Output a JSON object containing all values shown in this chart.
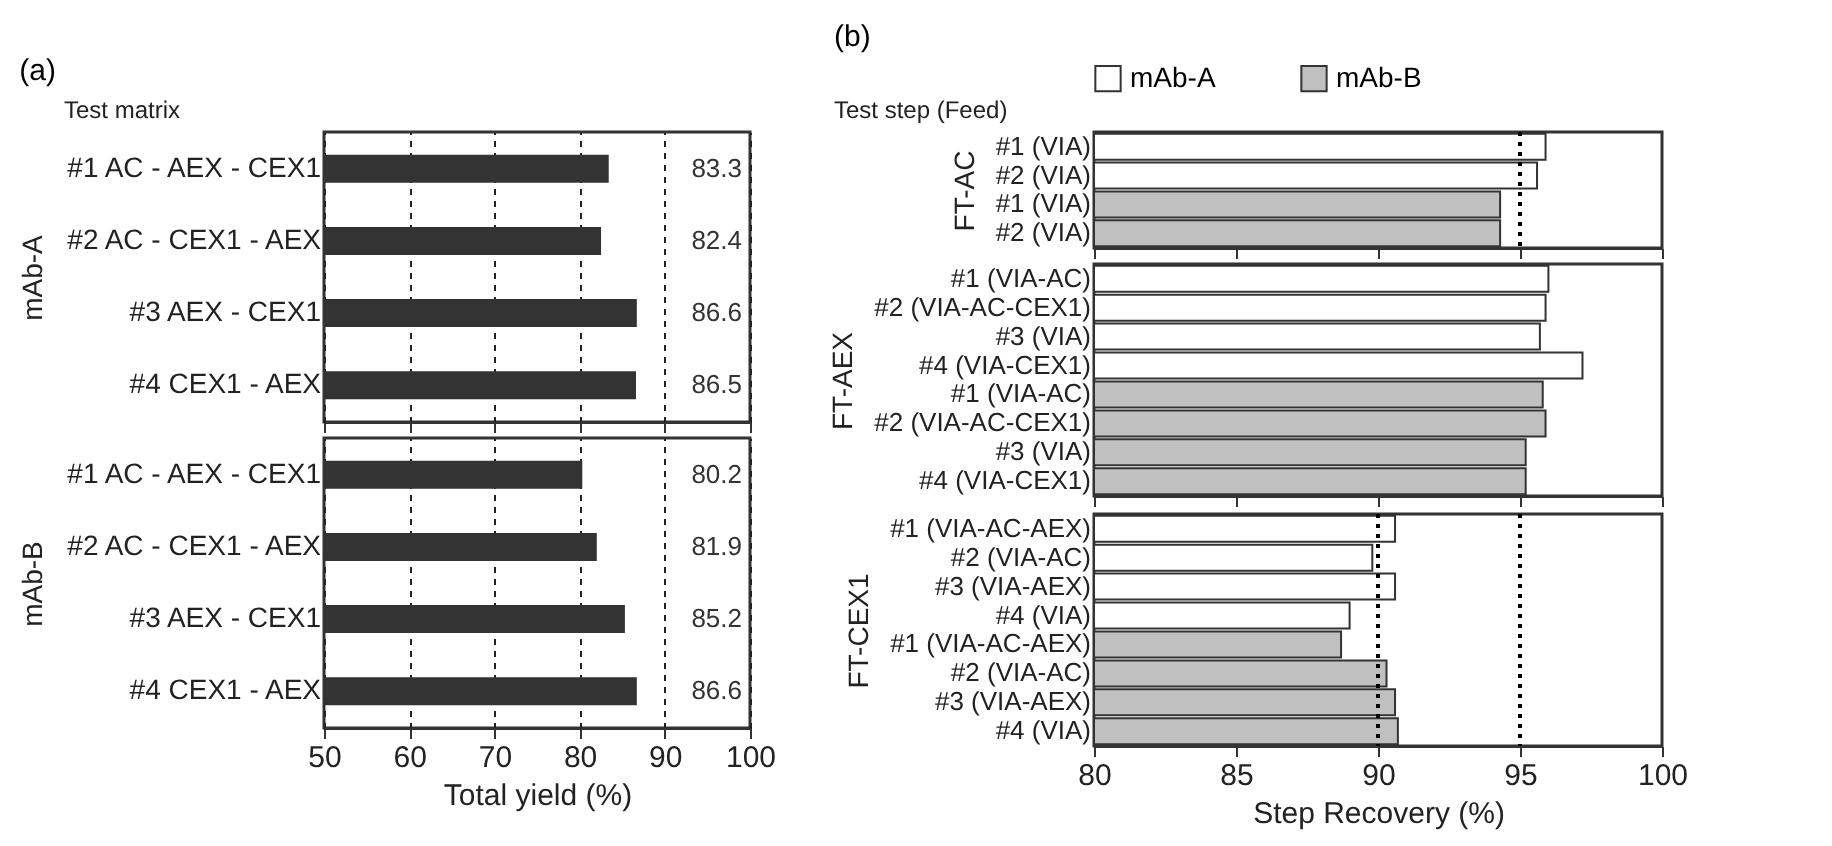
{
  "chart_data": [
    {
      "type": "bar",
      "orientation": "horizontal",
      "title": "(a)",
      "annotations": [
        "Test matrix"
      ],
      "ylabel": "mAb-A",
      "categories": [
        "#1 AC - AEX - CEX1",
        "#2 AC - CEX1 - AEX",
        "#3 AEX - CEX1",
        "#4 CEX1 - AEX"
      ],
      "values": [
        83.3,
        82.4,
        86.6,
        86.5
      ],
      "color": "#333333",
      "data_labels": true,
      "xlim": [
        50,
        100
      ],
      "xticks": [
        50,
        60,
        70,
        80,
        90,
        100
      ],
      "grid": "x",
      "tick_labels": "y"
    },
    {
      "type": "bar",
      "orientation": "horizontal",
      "ylabel": "mAb-B",
      "xlabel": "Total yield (%)",
      "categories": [
        "#1 AC - AEX - CEX1",
        "#2 AC - CEX1 - AEX",
        "#3 AEX - CEX1",
        "#4 CEX1 - AEX"
      ],
      "values": [
        80.2,
        81.9,
        85.2,
        86.6
      ],
      "color": "#333333",
      "data_labels": true,
      "xlim": [
        50,
        100
      ],
      "xticks": [
        50,
        60,
        70,
        80,
        90,
        100
      ],
      "grid": "x"
    },
    {
      "type": "bar",
      "orientation": "horizontal",
      "title": "(b)",
      "annotations": [
        "Test step (Feed)"
      ],
      "ylabel": "FT-AC",
      "categories": [
        "#1 (VIA)",
        "#2 (VIA)",
        "#1 (VIA)",
        "#2 (VIA)"
      ],
      "series": [
        {
          "name": "mAb-A",
          "color": "#ffffff",
          "values": [
            95.9,
            95.6,
            null,
            null
          ]
        },
        {
          "name": "mAb-B",
          "color": "#c0c0c0",
          "values": [
            null,
            null,
            94.3,
            94.3
          ]
        }
      ],
      "legend": "top",
      "ref_lines": [
        {
          "axis": "x",
          "value": 95,
          "line_style": "dotted"
        }
      ],
      "xlim": [
        80,
        100
      ],
      "xticks": [
        80,
        85,
        90,
        95,
        100
      ],
      "tick_labels": "y"
    },
    {
      "type": "bar",
      "orientation": "horizontal",
      "ylabel": "FT-AEX",
      "categories": [
        "#1 (VIA-AC)",
        "#2 (VIA-AC-CEX1)",
        "#3 (VIA)",
        "#4 (VIA-CEX1)",
        "#1 (VIA-AC)",
        "#2 (VIA-AC-CEX1)",
        "#3 (VIA)",
        "#4 (VIA-CEX1)"
      ],
      "series": [
        {
          "color": "#ffffff",
          "values": [
            96.0,
            95.9,
            95.7,
            97.2,
            null,
            null,
            null,
            null
          ]
        },
        {
          "color": "#c0c0c0",
          "values": [
            null,
            null,
            null,
            null,
            95.8,
            95.9,
            95.2,
            95.2
          ]
        }
      ],
      "xlim": [
        80,
        100
      ],
      "xticks": [
        80,
        85,
        90,
        95,
        100
      ],
      "tick_labels": "y"
    },
    {
      "type": "bar",
      "orientation": "horizontal",
      "ylabel": "FT-CEX1",
      "xlabel": "Step Recovery (%)",
      "categories": [
        "#1 (VIA-AC-AEX)",
        "#2 (VIA-AC)",
        "#3 (VIA-AEX)",
        "#4 (VIA)",
        "#1 (VIA-AC-AEX)",
        "#2 (VIA-AC)",
        "#3 (VIA-AEX)",
        "#4 (VIA)"
      ],
      "series": [
        {
          "color": "#ffffff",
          "values": [
            90.6,
            89.8,
            90.6,
            89.0,
            null,
            null,
            null,
            null
          ]
        },
        {
          "color": "#c0c0c0",
          "values": [
            null,
            null,
            null,
            null,
            88.7,
            90.3,
            90.6,
            90.7
          ]
        }
      ],
      "ref_lines": [
        {
          "axis": "x",
          "value": 90,
          "line_style": "dotted"
        },
        {
          "axis": "x",
          "value": 95,
          "line_style": "dotted"
        }
      ],
      "xlim": [
        80,
        100
      ],
      "xticks": [
        80,
        85,
        90,
        95,
        100
      ]
    }
  ]
}
